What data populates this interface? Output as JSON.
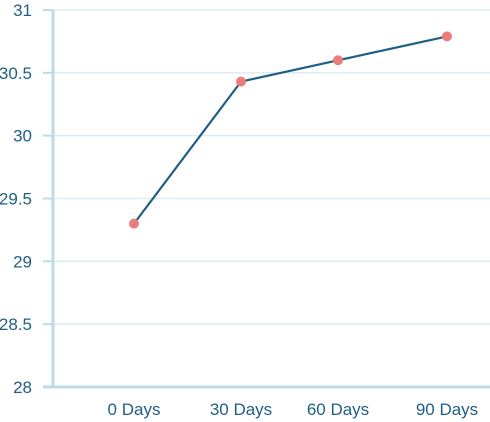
{
  "chart_data": {
    "type": "line",
    "title": "",
    "xlabel": "",
    "ylabel": "",
    "categories": [
      "0 Days",
      "30 Days",
      "60 Days",
      "90 Days"
    ],
    "series": [
      {
        "values": [
          29.3,
          30.43,
          30.6,
          30.79
        ]
      }
    ],
    "ylim": [
      28,
      31
    ],
    "yticks": [
      "28",
      "28.5",
      "29",
      "29.5",
      "30",
      "30.5",
      "31"
    ],
    "grid": "horizontal",
    "legend": "none",
    "colors": {
      "line": "#1f5f86",
      "marker": "#ec7d7d",
      "grid": "#d8ecf2",
      "axis": "#b9dce8",
      "text": "#1f5f86"
    }
  }
}
